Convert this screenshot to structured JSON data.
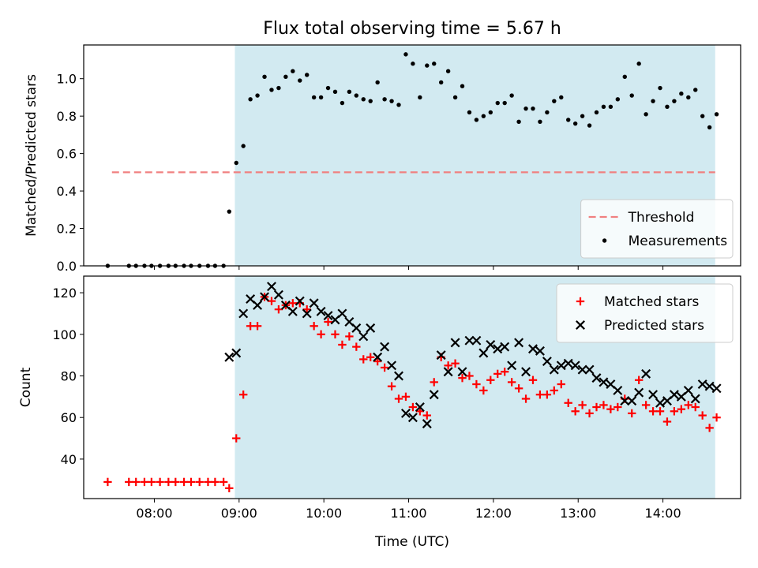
{
  "title": "Flux total observing time = 5.67 h",
  "xlabel": "Time (UTC)",
  "colors": {
    "shade": "#add8e6",
    "threshold": "#f08080",
    "matched": "#ff0000",
    "predicted": "#000000",
    "measurement": "#000000"
  },
  "chart_data": [
    {
      "type": "scatter",
      "ylabel": "Matched/Predicted stars",
      "ylim": [
        0,
        1.18
      ],
      "yticks": [
        "0.0",
        "0.2",
        "0.4",
        "0.6",
        "0.8",
        "1.0"
      ],
      "xlim": [
        "07:10",
        "14:55"
      ],
      "xticks": [
        "08:00",
        "09:00",
        "10:00",
        "11:00",
        "12:00",
        "13:00",
        "14:00"
      ],
      "shaded_span": [
        "08:57",
        "14:37"
      ],
      "legend": {
        "placement": "lower-right",
        "entries": [
          "Threshold",
          "Measurements"
        ]
      },
      "threshold": {
        "name": "Threshold",
        "value": 0.5,
        "x_range": [
          "07:30",
          "14:37"
        ]
      },
      "series": [
        {
          "name": "Measurements",
          "marker": "dot",
          "points": [
            [
              "07:27",
              0.0
            ],
            [
              "07:42",
              0.0
            ],
            [
              "07:47",
              0.0
            ],
            [
              "07:53",
              0.0
            ],
            [
              "07:58",
              0.0
            ],
            [
              "08:04",
              0.0
            ],
            [
              "08:10",
              0.0
            ],
            [
              "08:15",
              0.0
            ],
            [
              "08:21",
              0.0
            ],
            [
              "08:26",
              0.0
            ],
            [
              "08:32",
              0.0
            ],
            [
              "08:38",
              0.0
            ],
            [
              "08:43",
              0.0
            ],
            [
              "08:49",
              0.0
            ],
            [
              "08:53",
              0.29
            ],
            [
              "08:58",
              0.55
            ],
            [
              "09:03",
              0.64
            ],
            [
              "09:08",
              0.89
            ],
            [
              "09:13",
              0.91
            ],
            [
              "09:18",
              1.01
            ],
            [
              "09:23",
              0.94
            ],
            [
              "09:28",
              0.95
            ],
            [
              "09:33",
              1.01
            ],
            [
              "09:38",
              1.04
            ],
            [
              "09:43",
              0.99
            ],
            [
              "09:48",
              1.02
            ],
            [
              "09:53",
              0.9
            ],
            [
              "09:58",
              0.9
            ],
            [
              "10:03",
              0.95
            ],
            [
              "10:08",
              0.93
            ],
            [
              "10:13",
              0.87
            ],
            [
              "10:18",
              0.93
            ],
            [
              "10:23",
              0.91
            ],
            [
              "10:28",
              0.89
            ],
            [
              "10:33",
              0.88
            ],
            [
              "10:38",
              0.98
            ],
            [
              "10:43",
              0.89
            ],
            [
              "10:48",
              0.88
            ],
            [
              "10:53",
              0.86
            ],
            [
              "10:58",
              1.13
            ],
            [
              "11:03",
              1.08
            ],
            [
              "11:08",
              0.9
            ],
            [
              "11:13",
              1.07
            ],
            [
              "11:18",
              1.08
            ],
            [
              "11:23",
              0.98
            ],
            [
              "11:28",
              1.04
            ],
            [
              "11:33",
              0.9
            ],
            [
              "11:38",
              0.96
            ],
            [
              "11:43",
              0.82
            ],
            [
              "11:48",
              0.78
            ],
            [
              "11:53",
              0.8
            ],
            [
              "11:58",
              0.82
            ],
            [
              "12:03",
              0.87
            ],
            [
              "12:08",
              0.87
            ],
            [
              "12:13",
              0.91
            ],
            [
              "12:18",
              0.77
            ],
            [
              "12:23",
              0.84
            ],
            [
              "12:28",
              0.84
            ],
            [
              "12:33",
              0.77
            ],
            [
              "12:38",
              0.82
            ],
            [
              "12:43",
              0.88
            ],
            [
              "12:48",
              0.9
            ],
            [
              "12:53",
              0.78
            ],
            [
              "12:58",
              0.76
            ],
            [
              "13:03",
              0.8
            ],
            [
              "13:08",
              0.75
            ],
            [
              "13:13",
              0.82
            ],
            [
              "13:18",
              0.85
            ],
            [
              "13:23",
              0.85
            ],
            [
              "13:28",
              0.89
            ],
            [
              "13:33",
              1.01
            ],
            [
              "13:38",
              0.91
            ],
            [
              "13:43",
              1.08
            ],
            [
              "13:48",
              0.81
            ],
            [
              "13:53",
              0.88
            ],
            [
              "13:58",
              0.95
            ],
            [
              "14:03",
              0.85
            ],
            [
              "14:08",
              0.88
            ],
            [
              "14:13",
              0.92
            ],
            [
              "14:18",
              0.9
            ],
            [
              "14:23",
              0.94
            ],
            [
              "14:28",
              0.8
            ],
            [
              "14:33",
              0.74
            ],
            [
              "14:38",
              0.81
            ]
          ]
        }
      ]
    },
    {
      "type": "scatter",
      "ylabel": "Count",
      "ylim": [
        21,
        128
      ],
      "yticks": [
        "40",
        "60",
        "80",
        "100",
        "120"
      ],
      "xlim": [
        "07:10",
        "14:55"
      ],
      "xticks": [
        "08:00",
        "09:00",
        "10:00",
        "11:00",
        "12:00",
        "13:00",
        "14:00"
      ],
      "shaded_span": [
        "08:57",
        "14:37"
      ],
      "legend": {
        "placement": "top-right",
        "entries": [
          "Matched stars",
          "Predicted stars"
        ]
      },
      "series": [
        {
          "name": "Matched stars",
          "marker": "plus",
          "points": [
            [
              "07:27",
              29
            ],
            [
              "07:42",
              29
            ],
            [
              "07:47",
              29
            ],
            [
              "07:53",
              29
            ],
            [
              "07:58",
              29
            ],
            [
              "08:04",
              29
            ],
            [
              "08:10",
              29
            ],
            [
              "08:15",
              29
            ],
            [
              "08:21",
              29
            ],
            [
              "08:26",
              29
            ],
            [
              "08:32",
              29
            ],
            [
              "08:38",
              29
            ],
            [
              "08:43",
              29
            ],
            [
              "08:49",
              29
            ],
            [
              "08:53",
              26
            ],
            [
              "08:58",
              50
            ],
            [
              "09:03",
              71
            ],
            [
              "09:08",
              104
            ],
            [
              "09:13",
              104
            ],
            [
              "09:18",
              118
            ],
            [
              "09:23",
              116
            ],
            [
              "09:28",
              112
            ],
            [
              "09:33",
              114
            ],
            [
              "09:38",
              115
            ],
            [
              "09:43",
              115
            ],
            [
              "09:48",
              112
            ],
            [
              "09:53",
              104
            ],
            [
              "09:58",
              100
            ],
            [
              "10:03",
              106
            ],
            [
              "10:08",
              100
            ],
            [
              "10:13",
              95
            ],
            [
              "10:18",
              99
            ],
            [
              "10:23",
              94
            ],
            [
              "10:28",
              88
            ],
            [
              "10:33",
              89
            ],
            [
              "10:38",
              87
            ],
            [
              "10:43",
              84
            ],
            [
              "10:48",
              75
            ],
            [
              "10:53",
              69
            ],
            [
              "10:58",
              70
            ],
            [
              "11:03",
              65
            ],
            [
              "11:08",
              63
            ],
            [
              "11:13",
              61
            ],
            [
              "11:18",
              77
            ],
            [
              "11:23",
              89
            ],
            [
              "11:28",
              85
            ],
            [
              "11:33",
              86
            ],
            [
              "11:38",
              79
            ],
            [
              "11:43",
              80
            ],
            [
              "11:48",
              76
            ],
            [
              "11:53",
              73
            ],
            [
              "11:58",
              78
            ],
            [
              "12:03",
              81
            ],
            [
              "12:08",
              82
            ],
            [
              "12:13",
              77
            ],
            [
              "12:18",
              74
            ],
            [
              "12:23",
              69
            ],
            [
              "12:28",
              78
            ],
            [
              "12:33",
              71
            ],
            [
              "12:38",
              71
            ],
            [
              "12:43",
              73
            ],
            [
              "12:48",
              76
            ],
            [
              "12:53",
              67
            ],
            [
              "12:58",
              63
            ],
            [
              "13:03",
              66
            ],
            [
              "13:08",
              62
            ],
            [
              "13:13",
              65
            ],
            [
              "13:18",
              66
            ],
            [
              "13:23",
              64
            ],
            [
              "13:28",
              65
            ],
            [
              "13:33",
              69
            ],
            [
              "13:38",
              62
            ],
            [
              "13:43",
              78
            ],
            [
              "13:48",
              66
            ],
            [
              "13:53",
              63
            ],
            [
              "13:58",
              63
            ],
            [
              "14:03",
              58
            ],
            [
              "14:08",
              63
            ],
            [
              "14:13",
              64
            ],
            [
              "14:18",
              66
            ],
            [
              "14:23",
              65
            ],
            [
              "14:28",
              61
            ],
            [
              "14:33",
              55
            ],
            [
              "14:38",
              60
            ]
          ]
        },
        {
          "name": "Predicted stars",
          "marker": "x",
          "points": [
            [
              "08:53",
              89
            ],
            [
              "08:58",
              91
            ],
            [
              "09:03",
              110
            ],
            [
              "09:08",
              117
            ],
            [
              "09:13",
              114
            ],
            [
              "09:18",
              118
            ],
            [
              "09:23",
              123
            ],
            [
              "09:28",
              119
            ],
            [
              "09:33",
              114
            ],
            [
              "09:38",
              111
            ],
            [
              "09:43",
              116
            ],
            [
              "09:48",
              110
            ],
            [
              "09:53",
              115
            ],
            [
              "09:58",
              111
            ],
            [
              "10:03",
              109
            ],
            [
              "10:08",
              107
            ],
            [
              "10:13",
              110
            ],
            [
              "10:18",
              106
            ],
            [
              "10:23",
              103
            ],
            [
              "10:28",
              99
            ],
            [
              "10:33",
              103
            ],
            [
              "10:38",
              89
            ],
            [
              "10:43",
              94
            ],
            [
              "10:48",
              85
            ],
            [
              "10:53",
              80
            ],
            [
              "10:58",
              62
            ],
            [
              "11:03",
              60
            ],
            [
              "11:08",
              65
            ],
            [
              "11:13",
              57
            ],
            [
              "11:18",
              71
            ],
            [
              "11:23",
              90
            ],
            [
              "11:28",
              82
            ],
            [
              "11:33",
              96
            ],
            [
              "11:38",
              82
            ],
            [
              "11:43",
              97
            ],
            [
              "11:48",
              97
            ],
            [
              "11:53",
              91
            ],
            [
              "11:58",
              95
            ],
            [
              "12:03",
              93
            ],
            [
              "12:08",
              94
            ],
            [
              "12:13",
              85
            ],
            [
              "12:18",
              96
            ],
            [
              "12:23",
              82
            ],
            [
              "12:28",
              93
            ],
            [
              "12:33",
              92
            ],
            [
              "12:38",
              87
            ],
            [
              "12:43",
              83
            ],
            [
              "12:48",
              85
            ],
            [
              "12:53",
              86
            ],
            [
              "12:58",
              85
            ],
            [
              "13:03",
              83
            ],
            [
              "13:08",
              83
            ],
            [
              "13:13",
              79
            ],
            [
              "13:18",
              77
            ],
            [
              "13:23",
              76
            ],
            [
              "13:28",
              73
            ],
            [
              "13:33",
              68
            ],
            [
              "13:38",
              68
            ],
            [
              "13:43",
              72
            ],
            [
              "13:48",
              81
            ],
            [
              "13:53",
              71
            ],
            [
              "13:58",
              67
            ],
            [
              "14:03",
              68
            ],
            [
              "14:08",
              71
            ],
            [
              "14:13",
              70
            ],
            [
              "14:18",
              73
            ],
            [
              "14:23",
              69
            ],
            [
              "14:28",
              76
            ],
            [
              "14:33",
              75
            ],
            [
              "14:38",
              74
            ]
          ]
        }
      ]
    }
  ]
}
